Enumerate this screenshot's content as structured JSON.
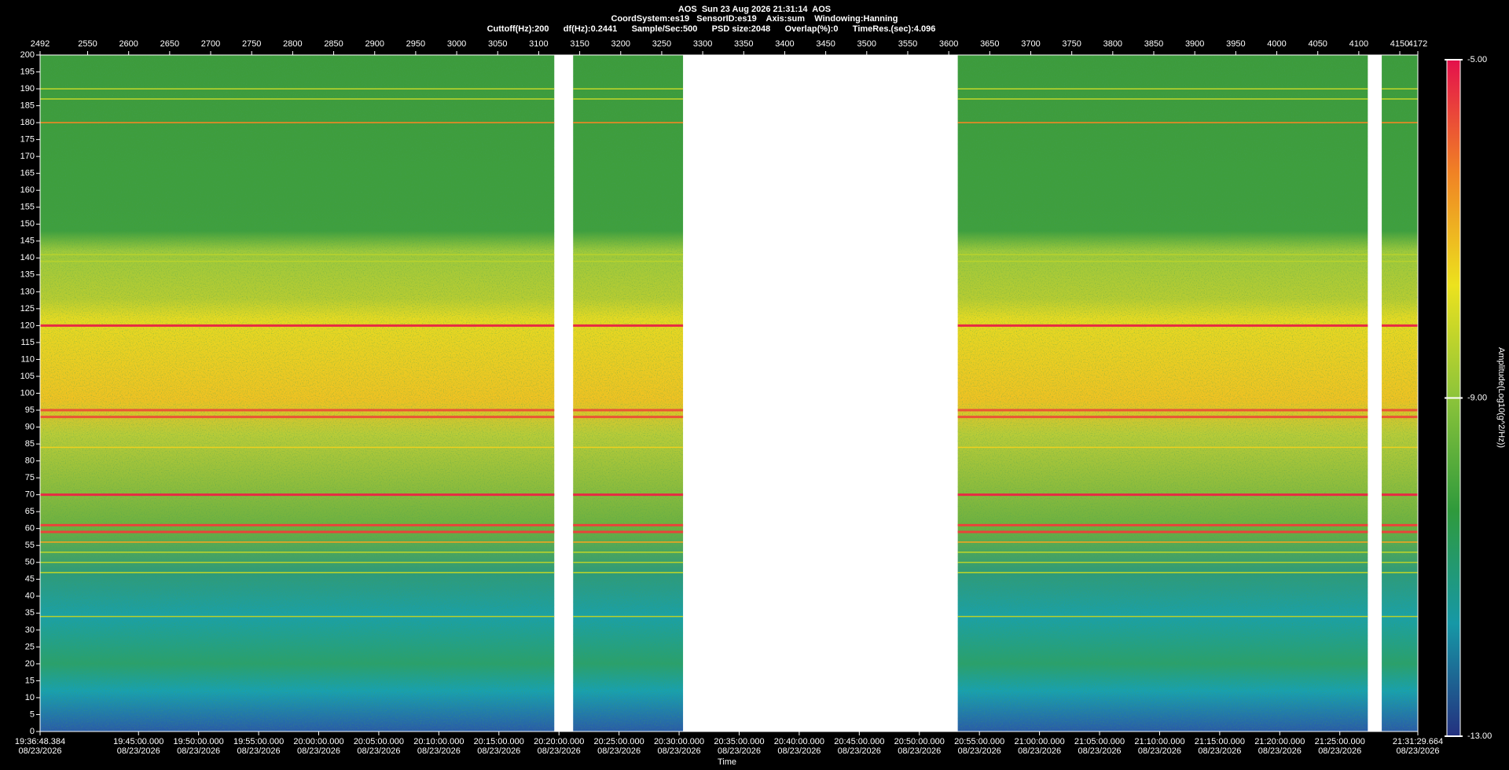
{
  "chart_data": {
    "type": "spectrogram",
    "title": "AOS  Sun 23 Aug 2026 21:31:14  AOS",
    "subtitle": "CoordSystem:es19   SensorID:es19    Axis:sum    Windowing:Hanning",
    "parameters": "Cuttoff(Hz):200      df(Hz):0.2441      Sample/Sec:500      PSD size:2048      Overlap(%):0      TimeRes.(sec):4.096",
    "x2label": "Time",
    "colorbar_label": "Amplitude(Log10(g^2/Hz))",
    "xlim": [
      2492,
      4172
    ],
    "xticks": [
      2492,
      2550,
      2600,
      2650,
      2700,
      2750,
      2800,
      2850,
      2900,
      2950,
      3000,
      3050,
      3100,
      3150,
      3200,
      3250,
      3300,
      3350,
      3400,
      3450,
      3500,
      3550,
      3600,
      3650,
      3700,
      3750,
      3800,
      3850,
      3900,
      3950,
      4000,
      4050,
      4100,
      4150,
      4172
    ],
    "x2lim": [
      70608.384,
      77489.664
    ],
    "x2ticks": [
      {
        "value": 70608.384,
        "label": "19:36:48.384",
        "date": "08/23/2026"
      },
      {
        "value": 71100,
        "label": "19:45:00.000",
        "date": "08/23/2026"
      },
      {
        "value": 71400,
        "label": "19:50:00.000",
        "date": "08/23/2026"
      },
      {
        "value": 71700,
        "label": "19:55:00.000",
        "date": "08/23/2026"
      },
      {
        "value": 72000,
        "label": "20:00:00.000",
        "date": "08/23/2026"
      },
      {
        "value": 72300,
        "label": "20:05:00.000",
        "date": "08/23/2026"
      },
      {
        "value": 72600,
        "label": "20:10:00.000",
        "date": "08/23/2026"
      },
      {
        "value": 72900,
        "label": "20:15:00.000",
        "date": "08/23/2026"
      },
      {
        "value": 73200,
        "label": "20:20:00.000",
        "date": "08/23/2026"
      },
      {
        "value": 73500,
        "label": "20:25:00.000",
        "date": "08/23/2026"
      },
      {
        "value": 73800,
        "label": "20:30:00.000",
        "date": "08/23/2026"
      },
      {
        "value": 74100,
        "label": "20:35:00.000",
        "date": "08/23/2026"
      },
      {
        "value": 74400,
        "label": "20:40:00.000",
        "date": "08/23/2026"
      },
      {
        "value": 74700,
        "label": "20:45:00.000",
        "date": "08/23/2026"
      },
      {
        "value": 75000,
        "label": "20:50:00.000",
        "date": "08/23/2026"
      },
      {
        "value": 75300,
        "label": "20:55:00.000",
        "date": "08/23/2026"
      },
      {
        "value": 75600,
        "label": "21:00:00.000",
        "date": "08/23/2026"
      },
      {
        "value": 75900,
        "label": "21:05:00.000",
        "date": "08/23/2026"
      },
      {
        "value": 76200,
        "label": "21:10:00.000",
        "date": "08/23/2026"
      },
      {
        "value": 76500,
        "label": "21:15:00.000",
        "date": "08/23/2026"
      },
      {
        "value": 76800,
        "label": "21:20:00.000",
        "date": "08/23/2026"
      },
      {
        "value": 77100,
        "label": "21:25:00.000",
        "date": "08/23/2026"
      },
      {
        "value": 77489.664,
        "label": "21:31:29.664",
        "date": "08/23/2026"
      }
    ],
    "ylim": [
      0,
      200
    ],
    "yticks": [
      0,
      5,
      10,
      15,
      20,
      25,
      30,
      35,
      40,
      45,
      50,
      55,
      60,
      65,
      70,
      75,
      80,
      85,
      90,
      95,
      100,
      105,
      110,
      115,
      120,
      125,
      130,
      135,
      140,
      145,
      150,
      155,
      160,
      165,
      170,
      175,
      180,
      185,
      190,
      195,
      200
    ],
    "clim": [
      -13,
      -5
    ],
    "cticks": [
      {
        "value": -5,
        "label": "-5.00"
      },
      {
        "value": -9,
        "label": "-9.00"
      },
      {
        "value": -13,
        "label": "-13.00"
      }
    ],
    "colormap": [
      "#24307f",
      "#1698a6",
      "#2f9a3c",
      "#8cc43a",
      "#ece21e",
      "#f08224",
      "#e4104c"
    ],
    "segments": [
      [
        2492,
        3119
      ],
      [
        3142,
        3276
      ],
      [
        3611,
        4111
      ],
      [
        4128,
        4172
      ]
    ],
    "tonal_lines": [
      {
        "freq": 190,
        "amplitude": -8.4
      },
      {
        "freq": 187,
        "amplitude": -8.4
      },
      {
        "freq": 180,
        "amplitude": -6.4
      },
      {
        "freq": 141,
        "amplitude": -8.4
      },
      {
        "freq": 139,
        "amplitude": -8.4
      },
      {
        "freq": 120,
        "amplitude": -5.3
      },
      {
        "freq": 95,
        "amplitude": -5.8
      },
      {
        "freq": 93,
        "amplitude": -5.8
      },
      {
        "freq": 84,
        "amplitude": -7.4
      },
      {
        "freq": 70,
        "amplitude": -5.3
      },
      {
        "freq": 61,
        "amplitude": -5.6
      },
      {
        "freq": 59,
        "amplitude": -5.6
      },
      {
        "freq": 56,
        "amplitude": -6.8
      },
      {
        "freq": 53,
        "amplitude": -8.4
      },
      {
        "freq": 50,
        "amplitude": -8.4
      },
      {
        "freq": 47,
        "amplitude": -8.4
      },
      {
        "freq": 34,
        "amplitude": -8.4
      }
    ]
  }
}
